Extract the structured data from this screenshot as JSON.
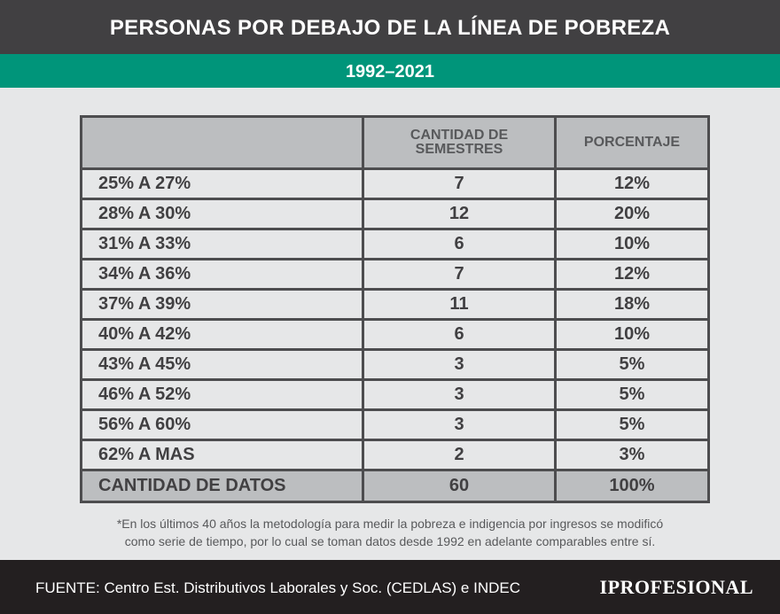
{
  "title": "PERSONAS POR DEBAJO DE LA LÍNEA DE POBREZA",
  "subtitle": "1992–2021",
  "table": {
    "headers": [
      "",
      "CANTIDAD DE SEMESTRES",
      "PORCENTAJE"
    ],
    "rows": [
      [
        "25% A 27%",
        "7",
        "12%"
      ],
      [
        "28% A 30%",
        "12",
        "20%"
      ],
      [
        "31% A 33%",
        "6",
        "10%"
      ],
      [
        "34% A 36%",
        "7",
        "12%"
      ],
      [
        "37% A 39%",
        "11",
        "18%"
      ],
      [
        "40% A 42%",
        "6",
        "10%"
      ],
      [
        "43% A 45%",
        "3",
        "5%"
      ],
      [
        "46% A 52%",
        "3",
        "5%"
      ],
      [
        "56% A 60%",
        "3",
        "5%"
      ],
      [
        "62% A MAS",
        "2",
        "3%"
      ]
    ],
    "total": [
      "CANTIDAD DE DATOS",
      "60",
      "100%"
    ]
  },
  "note": [
    "*En los últimos 40 años la metodología para medir la pobreza e indigencia por ingresos se modificó",
    "como serie de tiempo, por lo cual se toman datos desde 1992 en adelante comparables entre sí."
  ],
  "footer": {
    "source": "FUENTE: Centro Est. Distributivos Laborales y Soc. (CEDLAS) e INDEC",
    "logo": "IPROFESIONAL"
  },
  "colors": {
    "header": "#414042",
    "accent": "#00957a",
    "background": "#e6e7e8",
    "footer": "#231f20"
  }
}
